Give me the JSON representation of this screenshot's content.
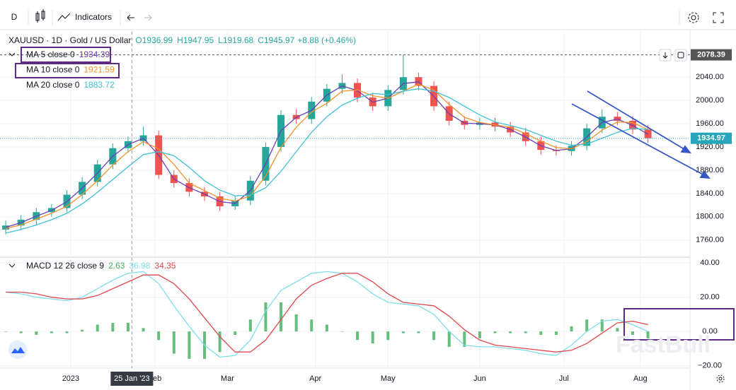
{
  "toolbar": {
    "interval": "D",
    "indicators": "Indicators"
  },
  "watermark": "FastBull",
  "chart_data": [
    {
      "type": "candlestick",
      "title": "XAUUSD · 1D · Gold / US Dollar",
      "ohlc_labels": [
        "O1936.99",
        "H1947.95",
        "L1919.68",
        "C1945.97"
      ],
      "change": "+8.88 (+0.46%)",
      "up_color": "#26a69a",
      "down_color": "#ef5350",
      "grid": true,
      "x": [
        0,
        4,
        8,
        12,
        16,
        20,
        24,
        28,
        32,
        36,
        40,
        44,
        48,
        52,
        56,
        60,
        64,
        68,
        72,
        76,
        80,
        84,
        88,
        92,
        96,
        100,
        104,
        108,
        112,
        116,
        120,
        124,
        128,
        132,
        136,
        140,
        144,
        148,
        152,
        156,
        160,
        164,
        168
      ],
      "open": [
        1778,
        1785,
        1795,
        1808,
        1815,
        1838,
        1860,
        1890,
        1918,
        1930,
        1940,
        1872,
        1858,
        1843,
        1835,
        1818,
        1828,
        1862,
        1920,
        1975,
        1968,
        1998,
        2020,
        2030,
        2005,
        1990,
        2018,
        2040,
        2025,
        1990,
        1965,
        1958,
        1962,
        1955,
        1945,
        1930,
        1915,
        1913,
        1922,
        1952,
        1972,
        1965,
        1950
      ],
      "high": [
        1794,
        1803,
        1815,
        1822,
        1846,
        1868,
        1898,
        1926,
        1938,
        1955,
        1948,
        1880,
        1866,
        1851,
        1843,
        1836,
        1870,
        1928,
        1983,
        1985,
        2006,
        2028,
        2045,
        2038,
        2013,
        2026,
        2078,
        2048,
        2033,
        1998,
        1973,
        1970,
        1970,
        1963,
        1953,
        1938,
        1923,
        1930,
        1960,
        1985,
        1980,
        1973,
        1958
      ],
      "low": [
        1770,
        1777,
        1787,
        1800,
        1808,
        1830,
        1852,
        1882,
        1910,
        1922,
        1865,
        1850,
        1835,
        1827,
        1810,
        1812,
        1820,
        1854,
        1912,
        1960,
        1960,
        1990,
        2012,
        1997,
        1982,
        1982,
        2010,
        2017,
        1982,
        1957,
        1950,
        1950,
        1947,
        1937,
        1922,
        1907,
        1905,
        1905,
        1914,
        1944,
        1957,
        1942,
        1927
      ],
      "close": [
        1785,
        1795,
        1808,
        1815,
        1838,
        1860,
        1890,
        1918,
        1930,
        1940,
        1872,
        1858,
        1843,
        1835,
        1818,
        1828,
        1862,
        1920,
        1975,
        1968,
        1998,
        2020,
        2030,
        2005,
        1990,
        2018,
        2040,
        2025,
        1990,
        1965,
        1958,
        1962,
        1955,
        1945,
        1930,
        1915,
        1913,
        1922,
        1952,
        1972,
        1965,
        1950,
        1935
      ],
      "series": [
        {
          "name": "MA 5 close 0",
          "legend_value": "1934.39",
          "color": "#6a3fb5",
          "values": [
            1782,
            1790,
            1801,
            1811,
            1826,
            1849,
            1875,
            1904,
            1924,
            1935,
            1906,
            1865,
            1850,
            1839,
            1826,
            1823,
            1845,
            1891,
            1948,
            1971,
            1983,
            2009,
            2025,
            2017,
            1997,
            2004,
            2029,
            2032,
            2007,
            1977,
            1961,
            1960,
            1958,
            1950,
            1937,
            1922,
            1914,
            1917,
            1937,
            1962,
            1968,
            1957,
            1942
          ]
        },
        {
          "name": "MA 10 close 0",
          "legend_value": "1921.59",
          "color": "#f0932b",
          "values": [
            1780,
            1786,
            1796,
            1806,
            1818,
            1838,
            1862,
            1889,
            1912,
            1929,
            1917,
            1890,
            1858,
            1845,
            1832,
            1827,
            1836,
            1870,
            1919,
            1954,
            1980,
            1995,
            2016,
            2018,
            2008,
            2004,
            2016,
            2028,
            2018,
            1993,
            1971,
            1962,
            1958,
            1954,
            1943,
            1930,
            1919,
            1917,
            1929,
            1949,
            1963,
            1962,
            1950
          ]
        },
        {
          "name": "MA 20 close 0",
          "legend_value": "1883.72",
          "color": "#3fc1d6",
          "values": [
            1772,
            1778,
            1786,
            1795,
            1806,
            1822,
            1842,
            1864,
            1886,
            1907,
            1912,
            1905,
            1885,
            1862,
            1846,
            1836,
            1837,
            1850,
            1878,
            1912,
            1945,
            1972,
            1992,
            2004,
            2012,
            2010,
            2016,
            2020,
            2016,
            2005,
            1990,
            1975,
            1963,
            1957,
            1950,
            1940,
            1930,
            1923,
            1925,
            1935,
            1945,
            1952,
            1950
          ]
        }
      ],
      "xlim": [
        -1.5,
        179
      ],
      "ylim": [
        1733,
        2118
      ],
      "yticks": [
        {
          "value": 1760,
          "label": "1760.00"
        },
        {
          "value": 1800,
          "label": "1800.00"
        },
        {
          "value": 1840,
          "label": "1840.00"
        },
        {
          "value": 1880,
          "label": "1880.00"
        },
        {
          "value": 1920,
          "label": "1920.00"
        },
        {
          "value": 1960,
          "label": "1960.00"
        },
        {
          "value": 2000,
          "label": "2000.00"
        },
        {
          "value": 2040,
          "label": "2040.00"
        }
      ],
      "xticks": [
        {
          "value": 17,
          "label": "2023"
        },
        {
          "value": 39,
          "label": "Feb"
        },
        {
          "value": 58,
          "label": "Mar"
        },
        {
          "value": 81,
          "label": "Apr"
        },
        {
          "value": 100,
          "label": "May"
        },
        {
          "value": 124,
          "label": "Jun"
        },
        {
          "value": 146,
          "label": "Jul"
        },
        {
          "value": 166,
          "label": "Aug"
        }
      ],
      "price_lines": [
        {
          "value": 2078.39,
          "label": "2078.39",
          "color": "#555555"
        },
        {
          "value": 1934.97,
          "label": "1934.97",
          "color": "#26a6b8"
        }
      ],
      "crosshair": {
        "value": 33,
        "label": "25 Jan '23"
      }
    },
    {
      "type": "macd",
      "title": "MACD 12 26 close 9",
      "grid": true,
      "x": [
        0,
        4,
        8,
        12,
        16,
        20,
        24,
        28,
        32,
        36,
        40,
        44,
        48,
        52,
        56,
        60,
        64,
        68,
        72,
        76,
        80,
        84,
        88,
        92,
        96,
        100,
        104,
        108,
        112,
        116,
        120,
        124,
        128,
        132,
        136,
        140,
        144,
        148,
        152,
        156,
        160,
        164,
        168
      ],
      "series": [
        {
          "style": "histogram",
          "legend_value": "2.63",
          "color": "#3fae5a",
          "values": [
            0,
            -1,
            -2,
            -1,
            -1,
            1,
            4,
            5,
            5,
            2,
            -5,
            -13,
            -16,
            -16,
            -12,
            -2,
            7,
            17,
            17,
            10,
            7,
            4,
            0,
            -5,
            -7,
            -5,
            -1,
            -1,
            -5,
            -9,
            -9,
            -4,
            -1,
            -1,
            -1,
            -2,
            -2,
            3,
            7,
            7,
            2,
            -2,
            -4
          ]
        },
        {
          "style": "line",
          "legend_value": "36.98",
          "color": "#7fdde8",
          "values": [
            23,
            22,
            20,
            19,
            18,
            20,
            25,
            30,
            34,
            35,
            28,
            15,
            3,
            -8,
            -15,
            -14,
            -5,
            12,
            24,
            29,
            34,
            35,
            34,
            29,
            22,
            17,
            16,
            15,
            10,
            0,
            -8,
            -9,
            -9,
            -10,
            -11,
            -13,
            -14,
            -8,
            0,
            6,
            7,
            4,
            0
          ]
        },
        {
          "style": "line",
          "legend_value": "34.35",
          "color": "#e0474c",
          "values": [
            23,
            23,
            22,
            20,
            19,
            19,
            21,
            25,
            29,
            33,
            33,
            28,
            19,
            8,
            -3,
            -12,
            -12,
            -5,
            7,
            19,
            27,
            31,
            34,
            34,
            29,
            22,
            17,
            16,
            15,
            9,
            1,
            -5,
            -8,
            -9,
            -10,
            -11,
            -12,
            -11,
            -7,
            -1,
            5,
            6,
            4
          ]
        }
      ],
      "xlim": [
        -1.5,
        179
      ],
      "ylim": [
        -21,
        42.6
      ],
      "yticks": [
        {
          "value": -20,
          "label": "−20.00"
        },
        {
          "value": 0,
          "label": "0.00"
        },
        {
          "value": 20,
          "label": "20.00"
        },
        {
          "value": 40,
          "label": "40.00"
        }
      ]
    }
  ]
}
